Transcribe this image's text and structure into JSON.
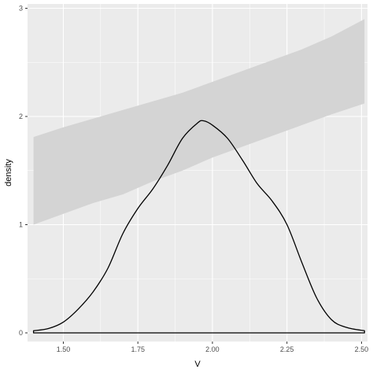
{
  "chart_data": {
    "type": "area",
    "xlabel": "V",
    "ylabel": "density",
    "xlim": [
      1.38,
      2.52
    ],
    "ylim": [
      -0.08,
      3.04
    ],
    "x_ticks": [
      "1.50",
      "1.75",
      "2.00",
      "2.25",
      "2.50"
    ],
    "x_tick_values": [
      1.5,
      1.75,
      2.0,
      2.25,
      2.5
    ],
    "y_ticks": [
      "0",
      "1",
      "2",
      "3"
    ],
    "y_tick_values": [
      0,
      1,
      2,
      3
    ],
    "grid": true,
    "legend": "none",
    "colors": {
      "panel": "#ebebeb",
      "grid_major": "#ffffff",
      "ribbon": "#d4d4d4",
      "density_line": "#000000"
    },
    "series": [
      {
        "kind": "ribbon",
        "x": [
          1.4,
          1.5,
          1.6,
          1.7,
          1.8,
          1.9,
          2.0,
          2.1,
          2.2,
          2.3,
          2.4,
          2.51
        ],
        "lower": [
          1.0,
          1.1,
          1.2,
          1.28,
          1.4,
          1.5,
          1.62,
          1.72,
          1.82,
          1.92,
          2.02,
          2.12
        ],
        "upper": [
          1.81,
          1.9,
          1.98,
          2.06,
          2.14,
          2.22,
          2.32,
          2.42,
          2.52,
          2.62,
          2.74,
          2.9
        ]
      },
      {
        "kind": "density",
        "x": [
          1.4,
          1.45,
          1.5,
          1.55,
          1.6,
          1.65,
          1.7,
          1.75,
          1.8,
          1.85,
          1.9,
          1.95,
          1.97,
          2.0,
          2.05,
          2.1,
          2.15,
          2.2,
          2.25,
          2.3,
          2.35,
          2.4,
          2.45,
          2.51
        ],
        "y": [
          0.02,
          0.04,
          0.1,
          0.22,
          0.38,
          0.6,
          0.92,
          1.15,
          1.33,
          1.55,
          1.8,
          1.94,
          1.96,
          1.92,
          1.8,
          1.6,
          1.38,
          1.22,
          1.0,
          0.65,
          0.32,
          0.12,
          0.05,
          0.02
        ]
      }
    ]
  }
}
